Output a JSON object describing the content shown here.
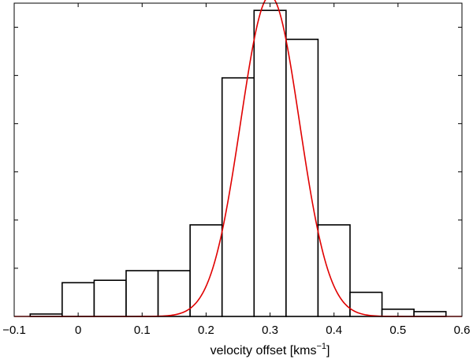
{
  "chart_data": {
    "type": "histogram",
    "title": "",
    "xlabel_main": "velocity offset [kms",
    "xlabel_sup": "−1",
    "xlabel_close": "]",
    "ylabel": "",
    "xlim": [
      -0.1,
      0.6
    ],
    "ylim": [
      0,
      65
    ],
    "grid": false,
    "xticks": [
      -0.1,
      0,
      0.1,
      0.2,
      0.3,
      0.4,
      0.5,
      0.6
    ],
    "xtick_labels": [
      "−0.1",
      "0",
      "0.1",
      "0.2",
      "0.3",
      "0.4",
      "0.5",
      "0.6"
    ],
    "yticks": [
      10,
      20,
      30,
      40,
      50,
      60
    ],
    "bins": [
      {
        "x0": -0.075,
        "x1": -0.025,
        "count": 0.5
      },
      {
        "x0": -0.025,
        "x1": 0.025,
        "count": 7
      },
      {
        "x0": 0.025,
        "x1": 0.075,
        "count": 7.5
      },
      {
        "x0": 0.075,
        "x1": 0.125,
        "count": 9.5
      },
      {
        "x0": 0.125,
        "x1": 0.175,
        "count": 9.5
      },
      {
        "x0": 0.175,
        "x1": 0.225,
        "count": 19
      },
      {
        "x0": 0.225,
        "x1": 0.275,
        "count": 49.5
      },
      {
        "x0": 0.275,
        "x1": 0.325,
        "count": 63.5
      },
      {
        "x0": 0.325,
        "x1": 0.375,
        "count": 57.5
      },
      {
        "x0": 0.375,
        "x1": 0.425,
        "count": 19
      },
      {
        "x0": 0.425,
        "x1": 0.475,
        "count": 5
      },
      {
        "x0": 0.475,
        "x1": 0.525,
        "count": 1.5
      },
      {
        "x0": 0.525,
        "x1": 0.575,
        "count": 1
      }
    ],
    "fit": {
      "type": "gaussian",
      "mean": 0.3,
      "sigma": 0.046,
      "amplitude": 66.5,
      "color": "#e00000"
    },
    "bar_fill": "#ffffff",
    "bar_stroke": "#000000"
  }
}
